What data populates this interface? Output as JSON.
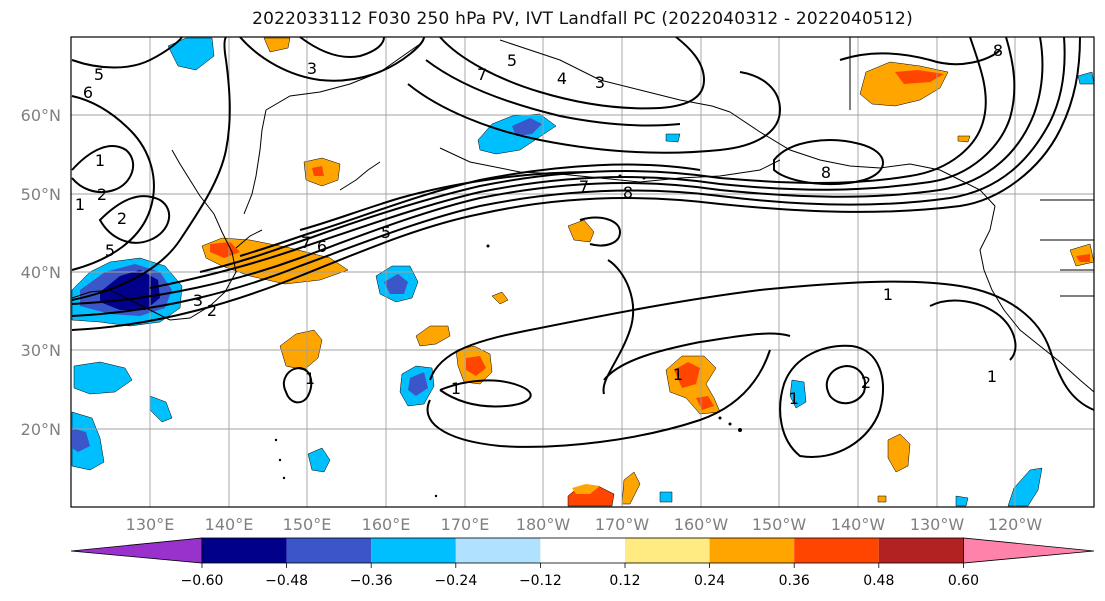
{
  "title": "2022033112 F030 250 hPa PV, IVT Landfall PC (2022040312 - 2022040512)",
  "map": {
    "lat_labels": [
      "60°N",
      "50°N",
      "40°N",
      "30°N",
      "20°N"
    ],
    "lon_labels": [
      "130°E",
      "140°E",
      "150°E",
      "160°E",
      "170°E",
      "180°W",
      "170°W",
      "160°W",
      "150°W",
      "140°W",
      "130°W",
      "120°W"
    ]
  },
  "contour_labels": [
    {
      "text": "5"
    },
    {
      "text": "6"
    },
    {
      "text": "3"
    },
    {
      "text": "5"
    },
    {
      "text": "4"
    },
    {
      "text": "3"
    },
    {
      "text": "7"
    },
    {
      "text": "8"
    },
    {
      "text": "1"
    },
    {
      "text": "2"
    },
    {
      "text": "1"
    },
    {
      "text": "5"
    },
    {
      "text": "2"
    },
    {
      "text": "7"
    },
    {
      "text": "8"
    },
    {
      "text": "8"
    },
    {
      "text": "7"
    },
    {
      "text": "6"
    },
    {
      "text": "5"
    },
    {
      "text": "1"
    },
    {
      "text": "3"
    },
    {
      "text": "2"
    },
    {
      "text": "1"
    },
    {
      "text": "1"
    },
    {
      "text": "1"
    },
    {
      "text": "2"
    },
    {
      "text": "1"
    },
    {
      "text": "1"
    }
  ],
  "colorbar": {
    "colors": [
      "#9932CC",
      "#00008B",
      "#3A56C8",
      "#00BFFF",
      "#B0E2FF",
      "#FFFFFF",
      "#FFEB82",
      "#FFA500",
      "#FF4500",
      "#B22222",
      "#FF82AB"
    ],
    "tick_labels": [
      "−0.60",
      "−0.48",
      "−0.36",
      "−0.24",
      "−0.12",
      "0.12",
      "0.24",
      "0.36",
      "0.48",
      "0.60"
    ]
  },
  "colors": {
    "grid": "#a0a0a0",
    "contour": "#000000",
    "axis_label": "#808080"
  }
}
